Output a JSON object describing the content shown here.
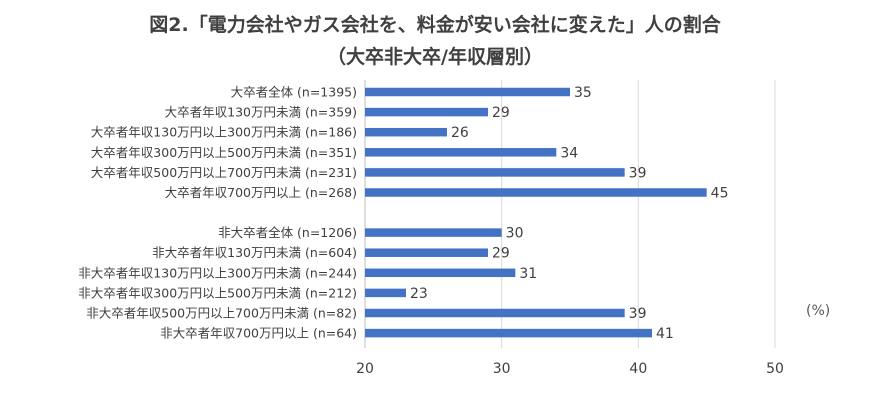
{
  "title": "図2.「電力会社やガス会社を、料金が安い会社に変えた」人の割合",
  "subtitle": "（大卒非大卒/年収層別）",
  "unit": "(%)",
  "colors": {
    "bar": "#4472c4",
    "gridline": "#d9d9d9",
    "text": "#404040"
  },
  "chart_data": {
    "type": "bar",
    "orientation": "horizontal",
    "title": "図2.「電力会社やガス会社を、料金が安い会社に変えた」人の割合",
    "subtitle": "（大卒非大卒/年収層別）",
    "unit": "(%)",
    "xlim": [
      20,
      50
    ],
    "ticks": [
      20,
      30,
      40,
      50
    ],
    "grid": true,
    "legend": "none",
    "groups": [
      {
        "categories": [
          "大卒者全体 (n=1395)",
          "大卒者年収130万円未満 (n=359)",
          "大卒者年収130万円以上300万円未満 (n=186)",
          "大卒者年収300万円以上500万円未満 (n=351)",
          "大卒者年収500万円以上700万円未満 (n=231)",
          "大卒者年収700万円以上 (n=268)"
        ],
        "values": [
          35,
          29,
          26,
          34,
          39,
          45
        ]
      },
      {
        "categories": [
          "非大卒者全体 (n=1206)",
          "非大卒者年収130万円未満 (n=604)",
          "非大卒者年収130万円以上300万円未満 (n=244)",
          "非大卒者年収300万円以上500万円未満 (n=212)",
          "非大卒者年収500万円以上700万円未満 (n=82)",
          "非大卒者年収700万円以上 (n=64)"
        ],
        "values": [
          30,
          29,
          31,
          23,
          39,
          41
        ]
      }
    ]
  }
}
